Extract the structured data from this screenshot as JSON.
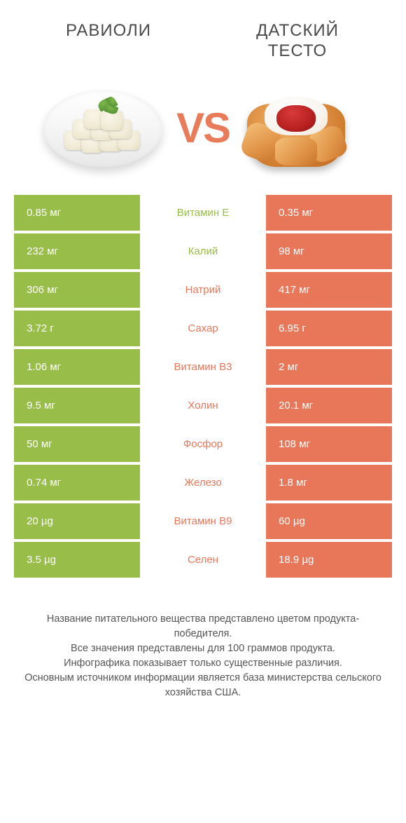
{
  "header": {
    "left_title": "РАВИОЛИ",
    "right_title": "ДАТСКИЙ ТЕСТО",
    "vs": "VS"
  },
  "colors": {
    "left": "#99bd49",
    "right": "#e8775a",
    "left_text": "#99bd49",
    "right_text": "#e8775a",
    "background": "#ffffff"
  },
  "rows": [
    {
      "left": "0.85 мг",
      "label": "Витамин E",
      "right": "0.35 мг",
      "winner": "left"
    },
    {
      "left": "232 мг",
      "label": "Калий",
      "right": "98 мг",
      "winner": "left"
    },
    {
      "left": "306 мг",
      "label": "Натрий",
      "right": "417 мг",
      "winner": "right"
    },
    {
      "left": "3.72 г",
      "label": "Сахар",
      "right": "6.95 г",
      "winner": "right"
    },
    {
      "left": "1.06 мг",
      "label": "Витамин B3",
      "right": "2 мг",
      "winner": "right"
    },
    {
      "left": "9.5 мг",
      "label": "Холин",
      "right": "20.1 мг",
      "winner": "right"
    },
    {
      "left": "50 мг",
      "label": "Фосфор",
      "right": "108 мг",
      "winner": "right"
    },
    {
      "left": "0.74 мг",
      "label": "Железо",
      "right": "1.8 мг",
      "winner": "right"
    },
    {
      "left": "20 µg",
      "label": "Витамин B9",
      "right": "60 µg",
      "winner": "right"
    },
    {
      "left": "3.5 µg",
      "label": "Селен",
      "right": "18.9 µg",
      "winner": "right"
    }
  ],
  "footnote": {
    "l1": "Название питательного вещества представлено цветом продукта-победителя.",
    "l2": "Все значения представлены для 100 граммов продукта.",
    "l3": "Инфографика показывает только существенные различия.",
    "l4": "Основным источником информации является база министерства сельского хозяйства США."
  }
}
